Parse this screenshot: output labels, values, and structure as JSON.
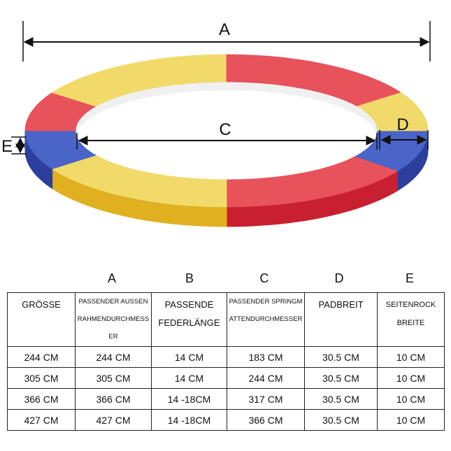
{
  "diagram": {
    "label_a": "A",
    "label_c": "C",
    "label_d": "D",
    "label_e": "E",
    "colors": {
      "yellow": "#f2da6a",
      "red": "#e8525a",
      "blue": "#4a64c8",
      "blue_dark": "#2c3f9e",
      "red_dark": "#c82030",
      "yellow_dark": "#e0b020"
    }
  },
  "table": {
    "column_letters": [
      "A",
      "B",
      "C",
      "D",
      "E"
    ],
    "headers": {
      "size": "GRÖSSE",
      "a": "PASSENDER AUSSENRAHMENDURCHMESSER",
      "b": "PASSENDE FEDERLÄNGE",
      "c": "PASSENDER SPRINGMATTENDURCHMESSER",
      "d": "PADBREIT",
      "e": "SEITENROCK BREITE"
    },
    "rows": [
      [
        "244 CM",
        "244 CM",
        "14 CM",
        "183 CM",
        "30.5 CM",
        "10 CM"
      ],
      [
        "305 CM",
        "305 CM",
        "14 CM",
        "244 CM",
        "30.5 CM",
        "10 CM"
      ],
      [
        "366 CM",
        "366 CM",
        "14 -18CM",
        "317 CM",
        "30.5 CM",
        "10 CM"
      ],
      [
        "427 CM",
        "427 CM",
        "14 -18CM",
        "366 CM",
        "30.5 CM",
        "10 CM"
      ]
    ]
  }
}
